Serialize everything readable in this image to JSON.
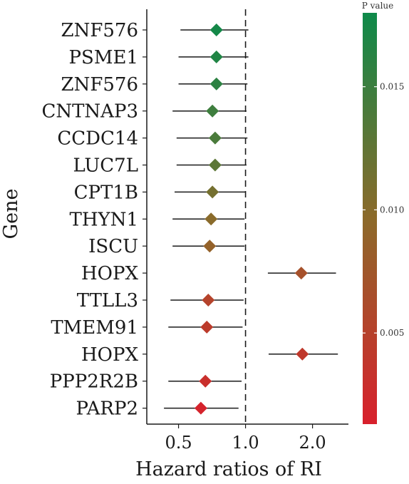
{
  "chart_data": {
    "type": "forest",
    "xlabel": "Hazard ratios of RI",
    "ylabel": "Gene",
    "x_scale": "log",
    "xlim": [
      0.36,
      2.9
    ],
    "x_ticks": [
      {
        "value": 0.5,
        "label": "0.5"
      },
      {
        "value": 1.0,
        "label": "1.0"
      },
      {
        "value": 2.0,
        "label": "2.0"
      }
    ],
    "reference_line": 1.0,
    "rows": [
      {
        "gene": "ZNF576",
        "hr": 0.74,
        "ci_low": 0.51,
        "ci_high": 1.03,
        "p": 0.0176
      },
      {
        "gene": "PSME1",
        "hr": 0.74,
        "ci_low": 0.5,
        "ci_high": 1.03,
        "p": 0.0168
      },
      {
        "gene": "ZNF576",
        "hr": 0.74,
        "ci_low": 0.5,
        "ci_high": 1.02,
        "p": 0.016
      },
      {
        "gene": "CNTNAP3",
        "hr": 0.71,
        "ci_low": 0.47,
        "ci_high": 1.01,
        "p": 0.0148
      },
      {
        "gene": "CCDC14",
        "hr": 0.73,
        "ci_low": 0.49,
        "ci_high": 1.02,
        "p": 0.014
      },
      {
        "gene": "LUC7L",
        "hr": 0.73,
        "ci_low": 0.49,
        "ci_high": 1.01,
        "p": 0.0128
      },
      {
        "gene": "CPT1B",
        "hr": 0.71,
        "ci_low": 0.48,
        "ci_high": 1.0,
        "p": 0.0112
      },
      {
        "gene": "THYN1",
        "hr": 0.7,
        "ci_low": 0.47,
        "ci_high": 0.99,
        "p": 0.0098
      },
      {
        "gene": "ISCU",
        "hr": 0.69,
        "ci_low": 0.47,
        "ci_high": 0.99,
        "p": 0.0088
      },
      {
        "gene": "HOPX",
        "hr": 1.78,
        "ci_low": 1.26,
        "ci_high": 2.55,
        "p": 0.0068
      },
      {
        "gene": "TTLL3",
        "hr": 0.68,
        "ci_low": 0.46,
        "ci_high": 0.98,
        "p": 0.0052
      },
      {
        "gene": "TMEM91",
        "hr": 0.67,
        "ci_low": 0.45,
        "ci_high": 0.97,
        "p": 0.0044
      },
      {
        "gene": "HOPX",
        "hr": 1.8,
        "ci_low": 1.27,
        "ci_high": 2.6,
        "p": 0.004
      },
      {
        "gene": "PPP2R2B",
        "hr": 0.66,
        "ci_low": 0.45,
        "ci_high": 0.96,
        "p": 0.003
      },
      {
        "gene": "PARP2",
        "hr": 0.63,
        "ci_low": 0.43,
        "ci_high": 0.93,
        "p": 0.0016
      }
    ],
    "colorbar": {
      "title": "P value",
      "range": [
        0.0013,
        0.018
      ],
      "ticks": [
        {
          "value": 0.005,
          "label": "0.005"
        },
        {
          "value": 0.01,
          "label": "0.010"
        },
        {
          "value": 0.015,
          "label": "0.015"
        }
      ],
      "low_color": "#d8202c",
      "mid_color": "#8c6a2a",
      "high_color": "#0e8a4a"
    },
    "grid": false
  }
}
